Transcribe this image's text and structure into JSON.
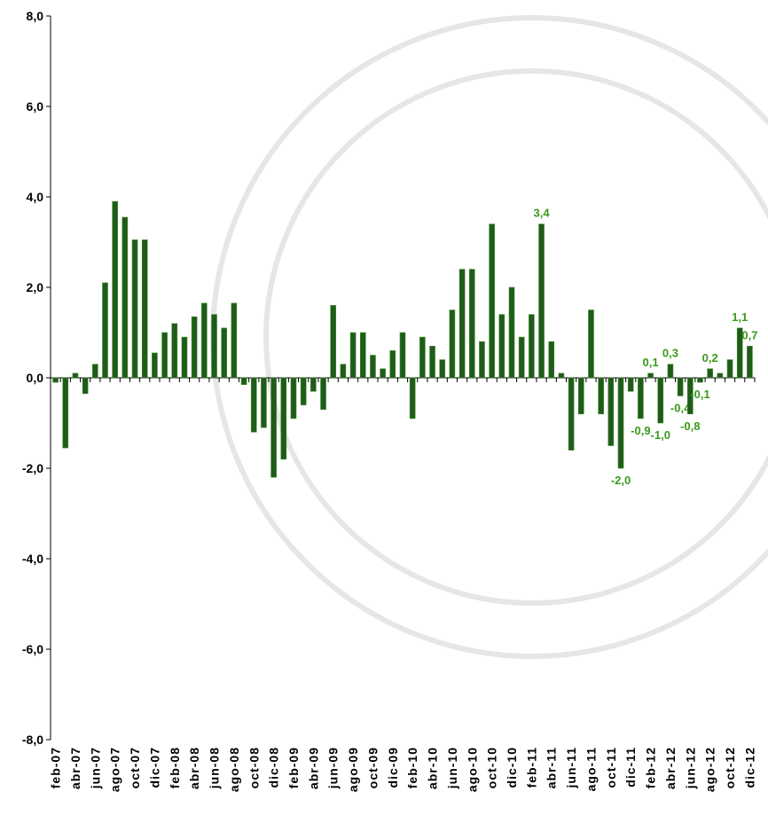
{
  "chart_data": {
    "type": "bar",
    "categories": [
      "feb-07",
      null,
      "abr-07",
      null,
      "jun-07",
      null,
      "ago-07",
      null,
      "oct-07",
      null,
      "dic-07",
      null,
      "feb-08",
      null,
      "abr-08",
      null,
      "jun-08",
      null,
      "ago-08",
      null,
      "oct-08",
      null,
      "dic-08",
      null,
      "feb-09",
      null,
      "abr-09",
      null,
      "jun-09",
      null,
      "ago-09",
      null,
      "oct-09",
      null,
      "dic-09",
      null,
      "feb-10",
      null,
      "abr-10",
      null,
      "jun-10",
      null,
      "ago-10",
      null,
      "oct-10",
      null,
      "dic-10",
      null,
      "feb-11",
      null,
      "abr-11",
      null,
      "jun-11",
      null,
      "ago-11",
      null,
      "oct-11",
      null,
      "dic-11",
      null,
      "feb-12",
      null,
      "abr-12",
      null,
      "jun-12",
      null,
      "ago-12",
      null,
      "oct-12",
      null,
      "dic-12"
    ],
    "values": [
      -0.1,
      -1.55,
      0.1,
      -0.35,
      0.3,
      2.1,
      3.9,
      3.55,
      3.05,
      3.05,
      0.55,
      1.0,
      1.2,
      0.9,
      1.35,
      1.65,
      1.4,
      1.1,
      1.65,
      -0.15,
      -1.2,
      -1.1,
      -2.2,
      -1.8,
      -0.9,
      -0.6,
      -0.3,
      -0.7,
      1.6,
      0.3,
      1.0,
      1.0,
      0.5,
      0.2,
      0.6,
      1.0,
      -0.9,
      0.9,
      0.7,
      0.4,
      1.5,
      2.4,
      2.4,
      0.8,
      3.4,
      1.4,
      2.0,
      0.9,
      1.4,
      3.4,
      0.8,
      0.1,
      -1.6,
      -0.8,
      1.5,
      -0.8,
      -1.5,
      -2.0,
      -0.3,
      -0.9,
      0.1,
      -1.0,
      0.3,
      -0.4,
      -0.8,
      -0.1,
      0.2,
      0.1,
      0.4,
      1.1,
      0.7
    ],
    "value_labels": [
      null,
      null,
      null,
      null,
      null,
      null,
      null,
      null,
      null,
      null,
      null,
      null,
      null,
      null,
      null,
      null,
      null,
      null,
      null,
      null,
      null,
      null,
      null,
      null,
      null,
      null,
      null,
      null,
      null,
      null,
      null,
      null,
      null,
      null,
      null,
      null,
      null,
      null,
      null,
      null,
      null,
      null,
      null,
      null,
      null,
      null,
      null,
      null,
      null,
      "3,4",
      null,
      null,
      null,
      null,
      null,
      null,
      null,
      "-2,0",
      null,
      "-0,9",
      "0,1",
      "-1,0",
      "0,3",
      "-0,4",
      "-0,8",
      "-0,1",
      "0,2",
      null,
      null,
      "1,1",
      "0,7"
    ],
    "color": "#1f5c1a",
    "ylim": [
      -8,
      8
    ],
    "yticks": [
      {
        "value": -8,
        "label": "-8,0"
      },
      {
        "value": -6,
        "label": "-6,0"
      },
      {
        "value": -4,
        "label": "-4,0"
      },
      {
        "value": -2,
        "label": "-2,0"
      },
      {
        "value": 0,
        "label": "0,0"
      },
      {
        "value": 2,
        "label": "2,0"
      },
      {
        "value": 4,
        "label": "4,0"
      },
      {
        "value": 6,
        "label": "6,0"
      },
      {
        "value": 8,
        "label": "8,0"
      }
    ],
    "grid": false
  }
}
